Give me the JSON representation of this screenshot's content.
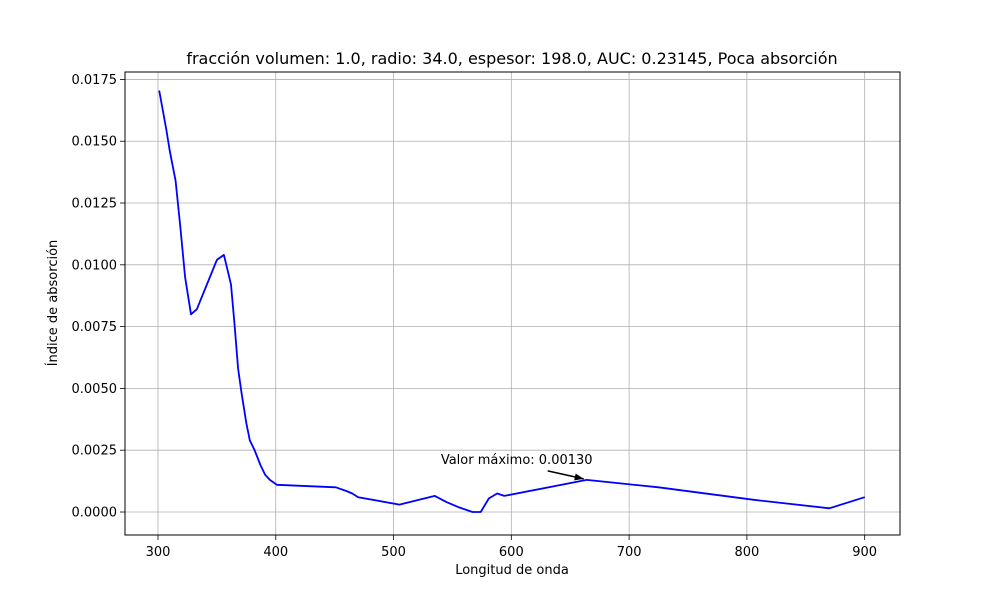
{
  "chart_data": {
    "type": "line",
    "title": "fracción volumen: 1.0, radio: 34.0, espesor: 198.0, AUC: 0.23145, Poca absorción",
    "xlabel": "Longitud de onda",
    "ylabel": "Índice de absorción",
    "xlim": [
      272,
      930
    ],
    "ylim": [
      -0.00093,
      0.0178
    ],
    "x_ticks": [
      300,
      400,
      500,
      600,
      700,
      800,
      900
    ],
    "x_tick_labels": [
      "300",
      "400",
      "500",
      "600",
      "700",
      "800",
      "900"
    ],
    "y_ticks": [
      0.0,
      0.0025,
      0.005,
      0.0075,
      0.01,
      0.0125,
      0.015,
      0.0175
    ],
    "y_tick_labels": [
      "0.0000",
      "0.0025",
      "0.0050",
      "0.0075",
      "0.0100",
      "0.0125",
      "0.0150",
      "0.0175"
    ],
    "grid": true,
    "line_color": "#0000ff",
    "series": [
      {
        "x": [
          301,
          307,
          310,
          315,
          319,
          323,
          328,
          333,
          350,
          353,
          356,
          359,
          362,
          365,
          368,
          371,
          375,
          378,
          382,
          387,
          391,
          395,
          401,
          451,
          460,
          465,
          470,
          505,
          535,
          545,
          555,
          567,
          574,
          581,
          588,
          594,
          664,
          725,
          805,
          870,
          900
        ],
        "y": [
          0.01705,
          0.0155,
          0.0146,
          0.0134,
          0.0115,
          0.0095,
          0.008,
          0.0082,
          0.0102,
          0.0103,
          0.0104,
          0.0098,
          0.0092,
          0.0076,
          0.0058,
          0.0048,
          0.0036,
          0.0029,
          0.0025,
          0.0019,
          0.0015,
          0.0013,
          0.0011,
          0.001,
          0.00085,
          0.00075,
          0.0006,
          0.0003,
          0.00065,
          0.0004,
          0.0002,
          0.0,
          0.0,
          0.00055,
          0.00075,
          0.00065,
          0.0013,
          0.001,
          0.0005,
          0.00015,
          0.0006
        ]
      }
    ],
    "annotations": [
      {
        "text": "Valor máximo: 0.00130",
        "point": [
          664,
          0.0013
        ]
      }
    ]
  }
}
